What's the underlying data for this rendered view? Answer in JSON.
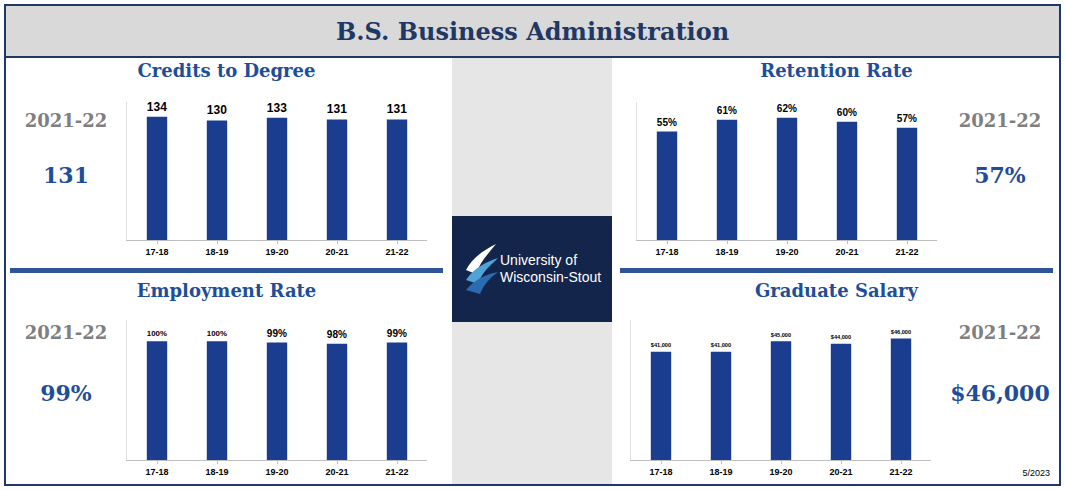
{
  "title": "B.S. Business Administration",
  "logo": [
    "University of",
    "Wisconsin-Stout"
  ],
  "date": "5/2023",
  "chart_data": [
    {
      "type": "bar",
      "title": "Credits to Degree",
      "period": "2021-22",
      "current": "131",
      "categories": [
        "17-18",
        "18-19",
        "19-20",
        "20-21",
        "21-22"
      ],
      "values": [
        134,
        130,
        133,
        131,
        131
      ],
      "color": "#1a3d8f",
      "ylim": [
        0,
        150
      ],
      "data_labels": true,
      "tick_labels": "x"
    },
    {
      "type": "bar",
      "title": "Retention Rate",
      "period": "2021-22",
      "current": "57%",
      "categories": [
        "17-18",
        "18-19",
        "19-20",
        "20-21",
        "21-22"
      ],
      "values": [
        55,
        61,
        62,
        60,
        57
      ],
      "value_labels": [
        "55%",
        "61%",
        "62%",
        "60%",
        "57%"
      ],
      "color": "#1a3d8f",
      "ylim": [
        0,
        70
      ],
      "data_labels": true,
      "tick_labels": "x"
    },
    {
      "type": "bar",
      "title": "Employment Rate",
      "period": "2021-22",
      "current": "99%",
      "categories": [
        "17-18",
        "18-19",
        "19-20",
        "20-21",
        "21-22"
      ],
      "values": [
        100,
        100,
        99,
        98,
        99
      ],
      "value_labels": [
        "100%",
        "100%",
        "99%",
        "98%",
        "99%"
      ],
      "color": "#1a3d8f",
      "ylim": [
        0,
        118
      ],
      "data_labels": true,
      "tick_labels": "x"
    },
    {
      "type": "bar",
      "title": "Graduate Salary",
      "period": "2021-22",
      "current": "$46,000",
      "categories": [
        "17-18",
        "18-19",
        "19-20",
        "20-21",
        "21-22"
      ],
      "values": [
        41000,
        41000,
        45000,
        44000,
        46000
      ],
      "value_labels": [
        "$41,000",
        "$41,000",
        "$45,000",
        "$44,000",
        "$46,000"
      ],
      "color": "#1a3d8f",
      "ylim": [
        0,
        53000
      ],
      "data_labels": true,
      "tick_labels": "x"
    }
  ]
}
